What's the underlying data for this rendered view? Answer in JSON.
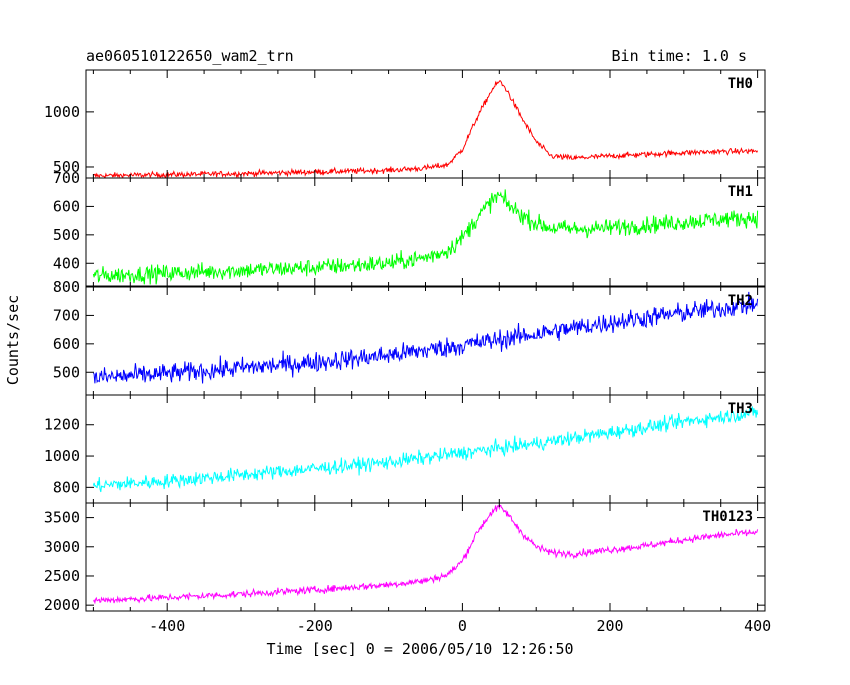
{
  "header": {
    "title": "ae060510122650_wam2_trn",
    "bin_time": "Bin time: 1.0 s"
  },
  "chart_data": {
    "type": "line",
    "title": "ae060510122650_wam2_trn",
    "subtitle": "Bin time: 1.0 s",
    "xlabel": "Time [sec] 0 = 2006/05/10 12:26:50",
    "ylabel": "Counts/sec",
    "xlim": [
      -510,
      410
    ],
    "xticks": [
      -400,
      -200,
      0,
      200,
      400
    ],
    "grid": false,
    "panels": [
      {
        "name": "TH0",
        "color": "#ff0000",
        "ylim": [
          400,
          1380
        ],
        "yticks": [
          500,
          1000
        ],
        "x": [
          -500,
          -400,
          -300,
          -200,
          -100,
          -50,
          -20,
          0,
          20,
          40,
          50,
          60,
          80,
          100,
          120,
          150,
          200,
          250,
          300,
          350,
          400
        ],
        "y": [
          420,
          430,
          440,
          455,
          470,
          490,
          520,
          660,
          950,
          1200,
          1280,
          1200,
          950,
          730,
          600,
          580,
          600,
          615,
          630,
          640,
          645
        ],
        "noise": 25
      },
      {
        "name": "TH1",
        "color": "#00ff00",
        "ylim": [
          320,
          700
        ],
        "yticks": [
          400,
          500,
          600,
          700
        ],
        "x": [
          -500,
          -400,
          -300,
          -200,
          -100,
          -50,
          -20,
          0,
          20,
          40,
          50,
          60,
          80,
          100,
          120,
          150,
          200,
          250,
          300,
          350,
          400
        ],
        "y": [
          355,
          365,
          375,
          385,
          400,
          420,
          445,
          490,
          560,
          620,
          640,
          610,
          570,
          540,
          525,
          520,
          525,
          535,
          545,
          555,
          560
        ],
        "noise": 30
      },
      {
        "name": "TH2",
        "color": "#0000ff",
        "ylim": [
          420,
          800
        ],
        "yticks": [
          500,
          600,
          700,
          800
        ],
        "x": [
          -500,
          -400,
          -300,
          -200,
          -100,
          0,
          100,
          200,
          300,
          400
        ],
        "y": [
          480,
          495,
          515,
          535,
          560,
          595,
          635,
          675,
          710,
          740
        ],
        "noise": 35
      },
      {
        "name": "TH3",
        "color": "#00ffff",
        "ylim": [
          700,
          1390
        ],
        "yticks": [
          800,
          1000,
          1200
        ],
        "x": [
          -500,
          -400,
          -300,
          -200,
          -100,
          0,
          100,
          200,
          300,
          400
        ],
        "y": [
          810,
          840,
          880,
          920,
          960,
          1020,
          1080,
          1150,
          1220,
          1280
        ],
        "noise": 45
      },
      {
        "name": "TH0123",
        "color": "#ff00ff",
        "ylim": [
          1900,
          3750
        ],
        "yticks": [
          2000,
          2500,
          3000,
          3500
        ],
        "x": [
          -500,
          -400,
          -300,
          -200,
          -100,
          -50,
          -20,
          0,
          20,
          40,
          50,
          60,
          80,
          100,
          120,
          150,
          200,
          250,
          300,
          350,
          400
        ],
        "y": [
          2080,
          2130,
          2190,
          2260,
          2350,
          2420,
          2520,
          2760,
          3250,
          3600,
          3680,
          3580,
          3250,
          3000,
          2900,
          2880,
          2950,
          3020,
          3120,
          3200,
          3250
        ],
        "noise": 60
      }
    ]
  }
}
